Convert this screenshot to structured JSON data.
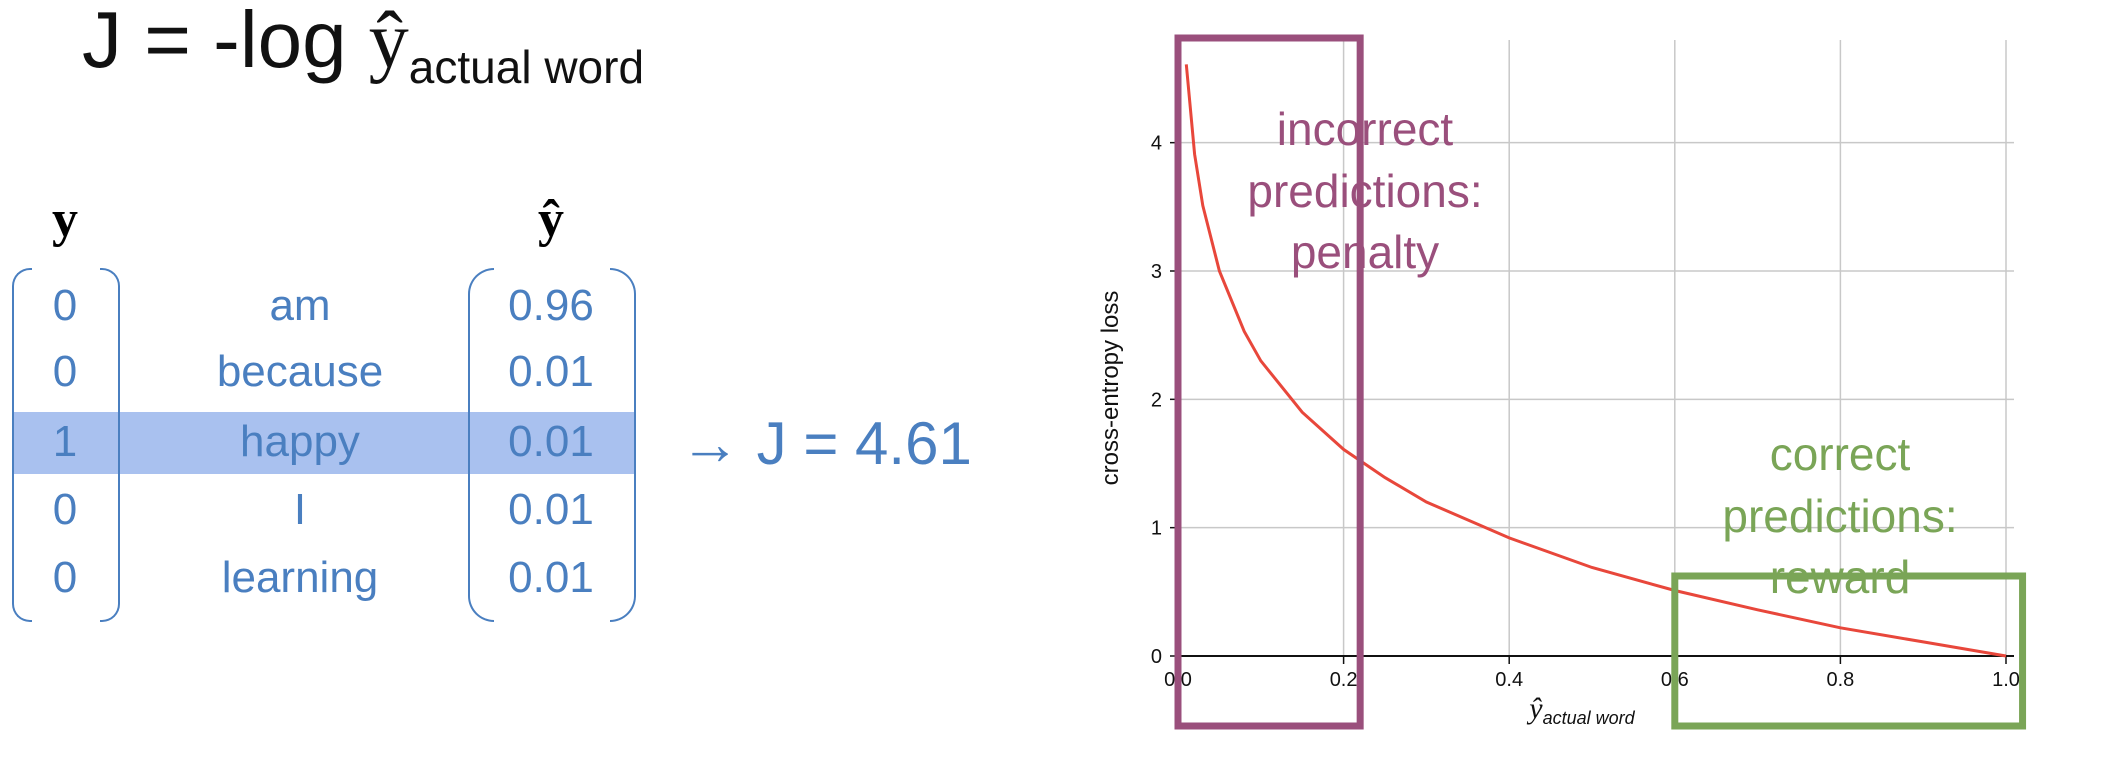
{
  "formula": {
    "prefix": "J = -log ",
    "yhat": "ŷ",
    "subscript": "actual word"
  },
  "headers": {
    "y": "y",
    "yhat": "ŷ"
  },
  "rows": [
    {
      "y": "0",
      "word": "am",
      "yhat": "0.96",
      "highlighted": false
    },
    {
      "y": "0",
      "word": "because",
      "yhat": "0.01",
      "highlighted": false
    },
    {
      "y": "1",
      "word": "happy",
      "yhat": "0.01",
      "highlighted": true
    },
    {
      "y": "0",
      "word": "I",
      "yhat": "0.01",
      "highlighted": false
    },
    {
      "y": "0",
      "word": "learning",
      "yhat": "0.01",
      "highlighted": false
    }
  ],
  "result": "→ J = 4.61",
  "annotations": {
    "incorrect": [
      "incorrect",
      "predictions:",
      "penalty"
    ],
    "correct": [
      "correct",
      "predictions:",
      "reward"
    ]
  },
  "colors": {
    "blue": "#4a7fc0",
    "highlight": "#a9c1ef",
    "curve": "#e8473b",
    "penalty": "#9a4f7c",
    "reward": "#7aa557"
  },
  "chart_data": {
    "type": "line",
    "title": "",
    "xlabel_main": "ŷ",
    "xlabel_sub": "actual word",
    "ylabel": "cross-entropy loss",
    "xlim": [
      0,
      1.0
    ],
    "ylim": [
      0,
      4.8
    ],
    "xticks": [
      "0.0",
      "0.2",
      "0.4",
      "0.6",
      "0.8",
      "1.0"
    ],
    "yticks": [
      "0",
      "1",
      "2",
      "3",
      "4"
    ],
    "grid": true,
    "series": [
      {
        "x": [
          0.01,
          0.02,
          0.03,
          0.05,
          0.08,
          0.1,
          0.15,
          0.2,
          0.25,
          0.3,
          0.4,
          0.5,
          0.6,
          0.7,
          0.8,
          0.9,
          1.0
        ],
        "y": [
          4.61,
          3.91,
          3.51,
          3.0,
          2.53,
          2.3,
          1.9,
          1.61,
          1.39,
          1.2,
          0.92,
          0.69,
          0.51,
          0.36,
          0.22,
          0.11,
          0.0
        ]
      }
    ],
    "regions": [
      {
        "name": "incorrect",
        "x0": 0.0,
        "x1": 0.22
      },
      {
        "name": "correct",
        "x0": 0.6,
        "x1": 1.02
      }
    ]
  }
}
